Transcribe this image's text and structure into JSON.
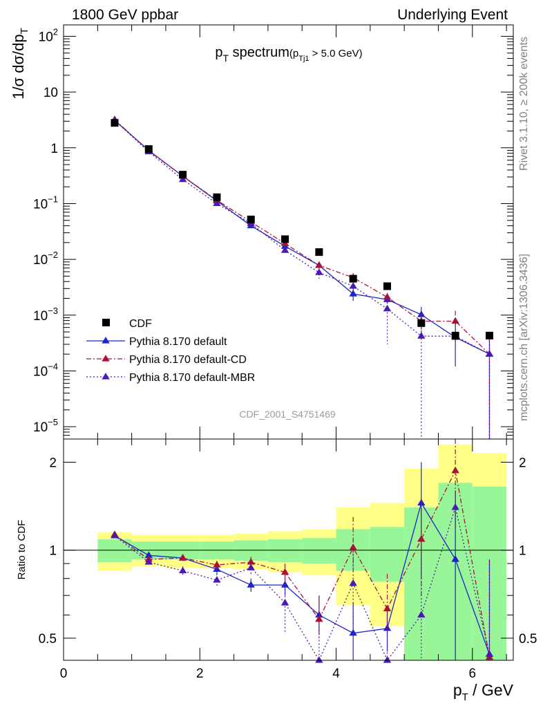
{
  "header": {
    "left": "1800 GeV ppbar",
    "right": "Underlying Event"
  },
  "side": {
    "rivet": "Rivet 3.1.10, ≥ 200k events",
    "mcplots": "mcplots.cern.ch [arXiv:1306.3436]"
  },
  "analysis_id": "CDF_2001_S4751469",
  "title": {
    "main_p": "p",
    "main_sub": "T",
    "main_rest": " spectrum",
    "cut_open": "(p",
    "cut_sub": "Tj1",
    "cut_rest": " > 5.0 GeV)"
  },
  "ylabel": {
    "text": "1/σ dσ/dp",
    "sub": "T"
  },
  "ratio_ylabel": "Ratio to CDF",
  "xlabel": {
    "p": "p",
    "sub": "T",
    "rest": " / GeV"
  },
  "chart_data": [
    {
      "type": "scatter",
      "panel": "main",
      "yscale": "log",
      "xlim": [
        0,
        6.6
      ],
      "ylim": [
        6e-06,
        160
      ],
      "xticks": [
        0,
        2,
        4,
        6
      ],
      "ytick_labels": [
        {
          "value": 100,
          "base": "10",
          "exp": "2"
        },
        {
          "value": 10,
          "base": "10",
          "exp": ""
        },
        {
          "value": 1,
          "base": "1",
          "exp": ""
        },
        {
          "value": 0.1,
          "base": "10",
          "exp": "−1"
        },
        {
          "value": 0.01,
          "base": "10",
          "exp": "−2"
        },
        {
          "value": 0.001,
          "base": "10",
          "exp": "−3"
        },
        {
          "value": 0.0001,
          "base": "10",
          "exp": "−4"
        },
        {
          "value": 1e-05,
          "base": "10",
          "exp": "−5"
        }
      ],
      "x": [
        0.75,
        1.25,
        1.75,
        2.25,
        2.75,
        3.25,
        3.75,
        4.25,
        4.75,
        5.25,
        5.75,
        6.25
      ],
      "series": [
        {
          "name": "CDF",
          "color": "#000000",
          "marker": "square",
          "values": [
            2.8,
            0.95,
            0.33,
            0.13,
            0.052,
            0.023,
            0.0135,
            0.0045,
            0.0033,
            0.00072,
            0.00043,
            0.00043
          ]
        },
        {
          "name": "Pythia 8.170 default",
          "color": "#1d24c8",
          "marker": "triangle",
          "line": "solid",
          "values": [
            3.1,
            0.9,
            0.31,
            0.112,
            0.04,
            0.0172,
            0.0078,
            0.0024,
            0.0019,
            0.00102,
            0.0004,
            0.0002
          ],
          "err_lo": [
            3.0,
            0.87,
            0.3,
            0.108,
            0.038,
            0.0162,
            0.0072,
            0.0018,
            0.0016,
            0.0006,
            0.00012,
            6e-06
          ],
          "err_hi": [
            3.2,
            0.93,
            0.32,
            0.116,
            0.042,
            0.0182,
            0.0085,
            0.003,
            0.0023,
            0.0014,
            0.0007,
            0.0004
          ]
        },
        {
          "name": "Pythia 8.170 default-CD",
          "color": "#aa1136",
          "marker": "triangle",
          "line": "dashdot",
          "values": [
            3.2,
            0.88,
            0.31,
            0.115,
            0.047,
            0.0192,
            0.0078,
            0.0047,
            0.0021,
            0.00078,
            0.00078,
            0.0002
          ],
          "err_lo": [
            3.1,
            0.85,
            0.3,
            0.11,
            0.045,
            0.0182,
            0.0068,
            0.0038,
            0.0017,
            0.0005,
            0.0005,
            6e-06
          ],
          "err_hi": [
            3.3,
            0.91,
            0.32,
            0.12,
            0.049,
            0.0202,
            0.0088,
            0.0057,
            0.0025,
            0.0011,
            0.0012,
            0.0004
          ]
        },
        {
          "name": "Pythia 8.170 default-MBR",
          "color": "#4a18b5",
          "marker": "triangle",
          "line": "dotted",
          "values": [
            3.1,
            0.85,
            0.27,
            0.1,
            0.044,
            0.0145,
            0.0058,
            0.0033,
            0.0013,
            0.00042,
            0.00042,
            0.0002
          ],
          "err_lo": [
            3.0,
            0.82,
            0.26,
            0.095,
            0.042,
            0.0135,
            0.0045,
            0.0025,
            0.0003,
            6e-06,
            0.0003,
            6e-06
          ],
          "err_hi": [
            3.2,
            0.88,
            0.28,
            0.105,
            0.046,
            0.0155,
            0.0072,
            0.0042,
            0.0023,
            0.0009,
            0.00055,
            0.0004
          ]
        }
      ],
      "legend": "bottom-left"
    },
    {
      "type": "scatter",
      "panel": "ratio",
      "yscale": "log",
      "xlim": [
        0,
        6.6
      ],
      "ylim": [
        0.42,
        2.4
      ],
      "yticks": [
        0.5,
        1,
        2
      ],
      "ytick_labels": [
        "0.5",
        "1",
        "2"
      ],
      "xticks": [
        0,
        2,
        4,
        6
      ],
      "band_edges": [
        0.5,
        1.0,
        1.5,
        2.0,
        2.5,
        3.0,
        3.5,
        4.0,
        4.5,
        5.0,
        5.5,
        6.0,
        6.5
      ],
      "band_1sigma": [
        [
          0.91,
          1.09
        ],
        [
          0.93,
          1.07
        ],
        [
          0.93,
          1.07
        ],
        [
          0.93,
          1.07
        ],
        [
          0.92,
          1.08
        ],
        [
          0.91,
          1.09
        ],
        [
          0.9,
          1.1
        ],
        [
          0.85,
          1.18
        ],
        [
          0.78,
          1.2
        ],
        [
          0.25,
          1.4
        ],
        [
          0.2,
          1.7
        ],
        [
          0.15,
          1.65
        ]
      ],
      "band_2sigma": [
        [
          0.85,
          1.15
        ],
        [
          0.88,
          1.13
        ],
        [
          0.87,
          1.13
        ],
        [
          0.87,
          1.13
        ],
        [
          0.86,
          1.14
        ],
        [
          0.84,
          1.16
        ],
        [
          0.82,
          1.18
        ],
        [
          0.65,
          1.4
        ],
        [
          0.55,
          1.45
        ],
        [
          0.1,
          1.9
        ],
        [
          0.1,
          2.3
        ],
        [
          0.1,
          2.15
        ]
      ],
      "series": [
        {
          "name": "Pythia 8.170 default",
          "values": [
            1.12,
            0.96,
            0.94,
            0.86,
            0.76,
            0.76,
            0.6,
            0.52,
            0.54,
            1.45,
            0.93,
            0.44
          ],
          "err_lo": [
            1.1,
            0.94,
            0.92,
            0.83,
            0.72,
            0.7,
            0.52,
            0.4,
            0.45,
            0.8,
            0.3,
            0.3
          ],
          "err_hi": [
            1.14,
            0.98,
            0.96,
            0.89,
            0.8,
            0.82,
            0.7,
            0.66,
            0.63,
            2.0,
            1.6,
            0.93
          ]
        },
        {
          "name": "Pythia 8.170 default-CD",
          "values": [
            1.13,
            0.93,
            0.94,
            0.89,
            0.91,
            0.84,
            0.58,
            1.02,
            0.63,
            1.09,
            1.87,
            0.43
          ],
          "err_lo": [
            1.11,
            0.91,
            0.92,
            0.86,
            0.87,
            0.78,
            0.5,
            0.85,
            0.52,
            0.7,
            1.2,
            0.3
          ],
          "err_hi": [
            1.15,
            0.95,
            0.96,
            0.92,
            0.95,
            0.9,
            0.68,
            1.3,
            0.83,
            1.5,
            2.4,
            0.92
          ]
        },
        {
          "name": "Pythia 8.170 default-MBR",
          "values": [
            1.12,
            0.91,
            0.85,
            0.79,
            0.87,
            0.66,
            0.41,
            0.77,
            0.4,
            0.6,
            1.4,
            0.44
          ],
          "err_lo": [
            1.1,
            0.89,
            0.82,
            0.75,
            0.83,
            0.52,
            0.33,
            0.55,
            0.2,
            0.3,
            1.2,
            0.3
          ],
          "err_hi": [
            1.14,
            0.93,
            0.88,
            0.83,
            0.91,
            0.8,
            0.55,
            1.0,
            0.62,
            0.95,
            1.6,
            0.92
          ]
        }
      ]
    }
  ]
}
